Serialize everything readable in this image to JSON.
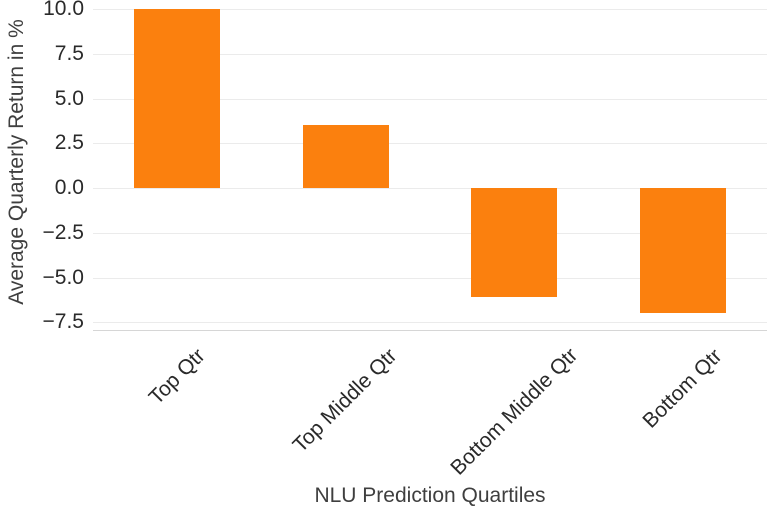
{
  "chart_data": {
    "type": "bar",
    "title": "",
    "xlabel": "NLU Prediction Quartiles",
    "ylabel": "Average Quarterly Return in %",
    "categories": [
      "Top Qtr",
      "Top Middle Qtr",
      "Bottom Middle Qtr",
      "Bottom Qtr"
    ],
    "values": [
      10.0,
      3.5,
      -6.1,
      -7.0
    ],
    "yticks": [
      10.0,
      7.5,
      5.0,
      2.5,
      0.0,
      -2.5,
      -5.0,
      -7.5
    ],
    "ytick_labels": [
      "10.0",
      "7.5",
      "5.0",
      "2.5",
      "0.0",
      "−2.5",
      "−5.0",
      "−7.5"
    ],
    "ylim": [
      -7.93,
      10.5
    ],
    "grid": "horizontal",
    "legend": "none",
    "colors": {
      "bar": "#fb800e",
      "gridline": "#ebebeb",
      "axis_line": "#d6d6d6",
      "tick_text": "#2a2a2a",
      "title_text": "#3f3f3f",
      "background": "#ffffff"
    }
  }
}
